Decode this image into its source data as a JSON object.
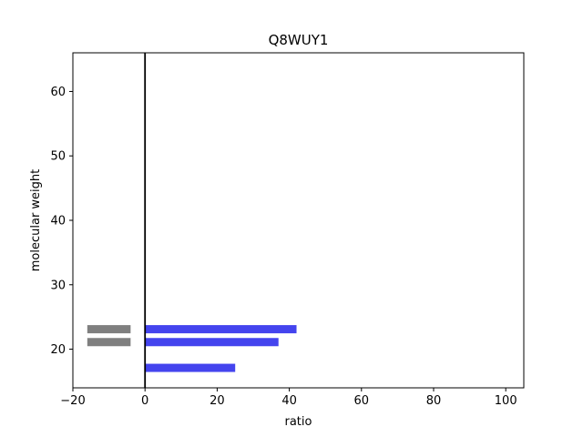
{
  "chart_data": {
    "type": "bar",
    "orientation": "horizontal",
    "title": "Q8WUY1",
    "xlabel": "ratio",
    "ylabel": "molecular weight",
    "xlim": [
      -20,
      105
    ],
    "ylim": [
      14,
      66
    ],
    "xticks": [
      -20,
      0,
      20,
      40,
      60,
      80,
      100
    ],
    "yticks": [
      20,
      30,
      40,
      50,
      60
    ],
    "grid": false,
    "zero_line": 0,
    "series": [
      {
        "color": "#4444ee",
        "bars": [
          {
            "y": 23.1,
            "x_start": 0,
            "x_end": 42
          },
          {
            "y": 21.1,
            "x_start": 0,
            "x_end": 37
          },
          {
            "y": 17.1,
            "x_start": 0,
            "x_end": 25
          }
        ]
      },
      {
        "color": "#7f7f7f",
        "bars": [
          {
            "y": 23.1,
            "x_start": -16,
            "x_end": -4
          },
          {
            "y": 21.1,
            "x_start": -16,
            "x_end": -4
          }
        ]
      }
    ]
  }
}
